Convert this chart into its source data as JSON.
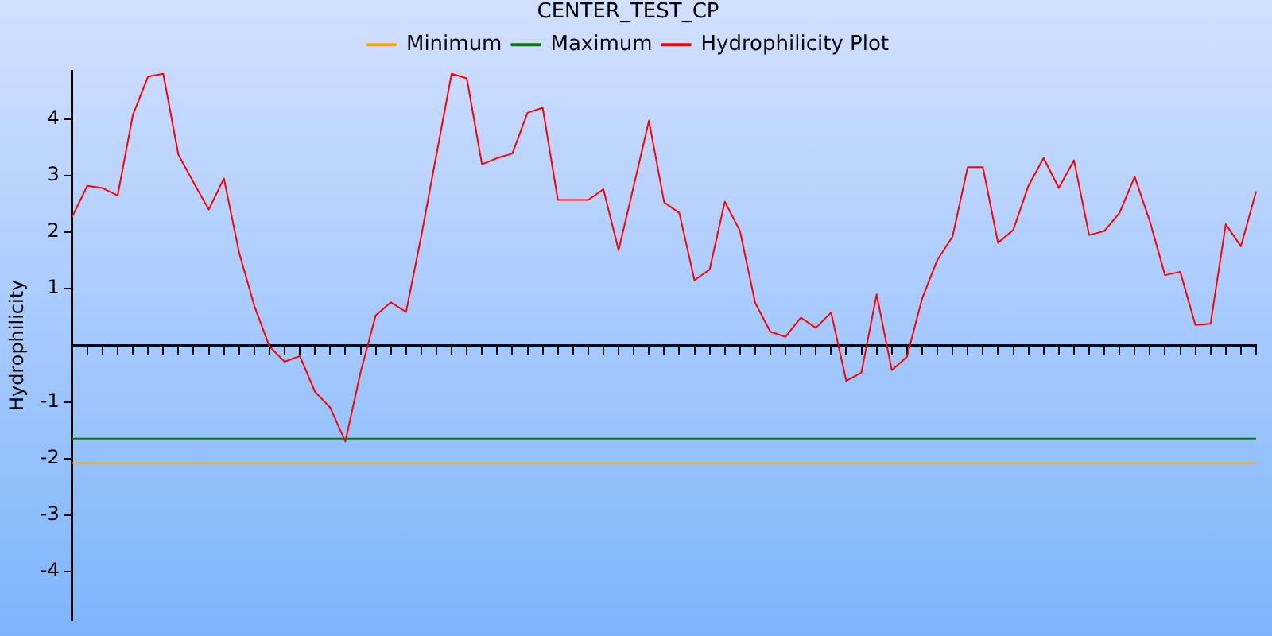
{
  "chart_data": {
    "type": "line",
    "title": "CENTER_TEST_CP",
    "ylabel": "Hydrophilicity",
    "categories": [
      null,
      null,
      null,
      null,
      null,
      null,
      null,
      null,
      null,
      null,
      null,
      null,
      null,
      null,
      null,
      null,
      null,
      null,
      null,
      null,
      null,
      null,
      null,
      null,
      null,
      null,
      null,
      null,
      null,
      null,
      null,
      null,
      null,
      null,
      null,
      null,
      null,
      null,
      null,
      null,
      null,
      null,
      null,
      null,
      null,
      null,
      null,
      null,
      null,
      null,
      null,
      null,
      null,
      null,
      null,
      null,
      null,
      null,
      null,
      null,
      null,
      null,
      null,
      null,
      null,
      null,
      null,
      null,
      null,
      null,
      null,
      null,
      null,
      null,
      null,
      null,
      null,
      null,
      null
    ],
    "series": [
      {
        "name": "Minimum",
        "color": "#ffa500",
        "values": [
          -2.08,
          -2.08,
          -2.08,
          -2.08,
          -2.08,
          -2.08,
          -2.08,
          -2.08,
          -2.08,
          -2.08,
          -2.08,
          -2.08,
          -2.08,
          -2.08,
          -2.08,
          -2.08,
          -2.08,
          -2.08,
          -2.08,
          -2.08,
          -2.08,
          -2.08,
          -2.08,
          -2.08,
          -2.08,
          -2.08,
          -2.08,
          -2.08,
          -2.08,
          -2.08,
          -2.08,
          -2.08,
          -2.08,
          -2.08,
          -2.08,
          -2.08,
          -2.08,
          -2.08,
          -2.08,
          -2.08,
          -2.08,
          -2.08,
          -2.08,
          -2.08,
          -2.08,
          -2.08,
          -2.08,
          -2.08,
          -2.08,
          -2.08,
          -2.08,
          -2.08,
          -2.08,
          -2.08,
          -2.08,
          -2.08,
          -2.08,
          -2.08,
          -2.08,
          -2.08,
          -2.08,
          -2.08,
          -2.08,
          -2.08,
          -2.08,
          -2.08,
          -2.08,
          -2.08,
          -2.08,
          -2.08,
          -2.08,
          -2.08,
          -2.08,
          -2.08,
          -2.08,
          -2.08,
          -2.08,
          -2.08,
          -2.08
        ]
      },
      {
        "name": "Maximum",
        "color": "#008000",
        "values": [
          -1.65,
          -1.65,
          -1.65,
          -1.65,
          -1.65,
          -1.65,
          -1.65,
          -1.65,
          -1.65,
          -1.65,
          -1.65,
          -1.65,
          -1.65,
          -1.65,
          -1.65,
          -1.65,
          -1.65,
          -1.65,
          -1.65,
          -1.65,
          -1.65,
          -1.65,
          -1.65,
          -1.65,
          -1.65,
          -1.65,
          -1.65,
          -1.65,
          -1.65,
          -1.65,
          -1.65,
          -1.65,
          -1.65,
          -1.65,
          -1.65,
          -1.65,
          -1.65,
          -1.65,
          -1.65,
          -1.65,
          -1.65,
          -1.65,
          -1.65,
          -1.65,
          -1.65,
          -1.65,
          -1.65,
          -1.65,
          -1.65,
          -1.65,
          -1.65,
          -1.65,
          -1.65,
          -1.65,
          -1.65,
          -1.65,
          -1.65,
          -1.65,
          -1.65,
          -1.65,
          -1.65,
          -1.65,
          -1.65,
          -1.65,
          -1.65,
          -1.65,
          -1.65,
          -1.65,
          -1.65,
          -1.65,
          -1.65,
          -1.65,
          -1.65,
          -1.65,
          -1.65,
          -1.65,
          -1.65,
          -1.65,
          -1.65
        ]
      },
      {
        "name": "Hydrophilicity Plot",
        "color": "#ff0000",
        "values": [
          2.27,
          2.82,
          2.78,
          2.65,
          4.07,
          4.75,
          4.8,
          3.37,
          2.88,
          2.4,
          2.95,
          1.64,
          0.7,
          -0.02,
          -0.29,
          -0.19,
          -0.82,
          -1.1,
          -1.7,
          -0.48,
          0.53,
          0.76,
          0.59,
          1.93,
          3.37,
          4.8,
          4.72,
          3.2,
          3.31,
          3.39,
          4.11,
          4.2,
          2.57,
          2.57,
          2.57,
          2.76,
          1.68,
          2.82,
          3.97,
          2.53,
          2.34,
          1.15,
          1.34,
          2.54,
          2.02,
          0.75,
          0.24,
          0.15,
          0.49,
          0.31,
          0.58,
          -0.63,
          -0.48,
          0.9,
          -0.44,
          -0.2,
          0.83,
          1.51,
          1.92,
          3.15,
          3.15,
          1.81,
          2.04,
          2.82,
          3.31,
          2.78,
          3.27,
          1.95,
          2.02,
          2.34,
          2.98,
          2.19,
          1.24,
          1.3,
          0.36,
          0.38,
          2.14,
          1.75,
          2.72
        ]
      }
    ],
    "ylim": [
      -4.85,
      4.85
    ],
    "yticks": [
      -4,
      -3,
      -2,
      -1,
      1,
      2,
      3,
      4
    ],
    "grid": false,
    "legend": "top",
    "marker": "none",
    "line_style": "solid"
  }
}
